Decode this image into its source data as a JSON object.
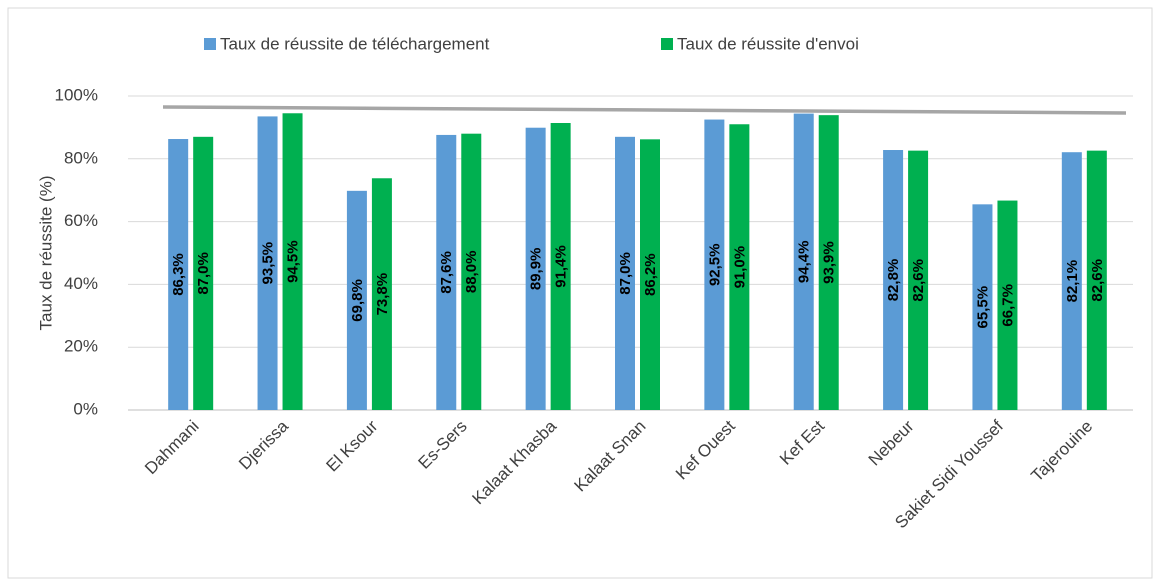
{
  "chart_data": {
    "type": "bar",
    "y_label": "Taux de réussite (%)",
    "categories": [
      "Dahmani",
      "Djerissa",
      "El Ksour",
      "Es-Sers",
      "Kalaat Khasba",
      "Kalaat Snan",
      "Kef Ouest",
      "Kef Est",
      "Nebeur",
      "Sakiet Sidi Youssef",
      "Tajerouine"
    ],
    "series": [
      {
        "name": "Taux de réussite de téléchargement",
        "color": "#5b9bd5",
        "values": [
          86.3,
          93.5,
          69.8,
          87.6,
          89.9,
          87.0,
          92.5,
          94.4,
          82.8,
          65.5,
          82.1
        ],
        "value_labels": [
          "86,3%",
          "93,5%",
          "69,8%",
          "87,6%",
          "89,9%",
          "87,0%",
          "92,5%",
          "94,4%",
          "82,8%",
          "65,5%",
          "82,1%"
        ]
      },
      {
        "name": "Taux de réussite  d'envoi",
        "color": "#00b050",
        "values": [
          87.0,
          94.5,
          73.8,
          88.0,
          91.4,
          86.2,
          91.0,
          93.9,
          82.6,
          66.7,
          82.6
        ],
        "value_labels": [
          "87,0%",
          "94,5%",
          "73,8%",
          "88,0%",
          "91,4%",
          "86,2%",
          "91,0%",
          "93,9%",
          "82,6%",
          "66,7%",
          "82,6%"
        ]
      }
    ],
    "reference_line": {
      "start": 96.5,
      "end": 94.6,
      "color": "#a6a6a6"
    },
    "ylim": [
      0,
      100
    ],
    "yticks": [
      {
        "value": 0,
        "label": "0%"
      },
      {
        "value": 20,
        "label": "20%"
      },
      {
        "value": 40,
        "label": "40%"
      },
      {
        "value": 60,
        "label": "60%"
      },
      {
        "value": 80,
        "label": "80%"
      },
      {
        "value": 100,
        "label": "100%"
      }
    ],
    "grid": true,
    "legend": "top"
  }
}
